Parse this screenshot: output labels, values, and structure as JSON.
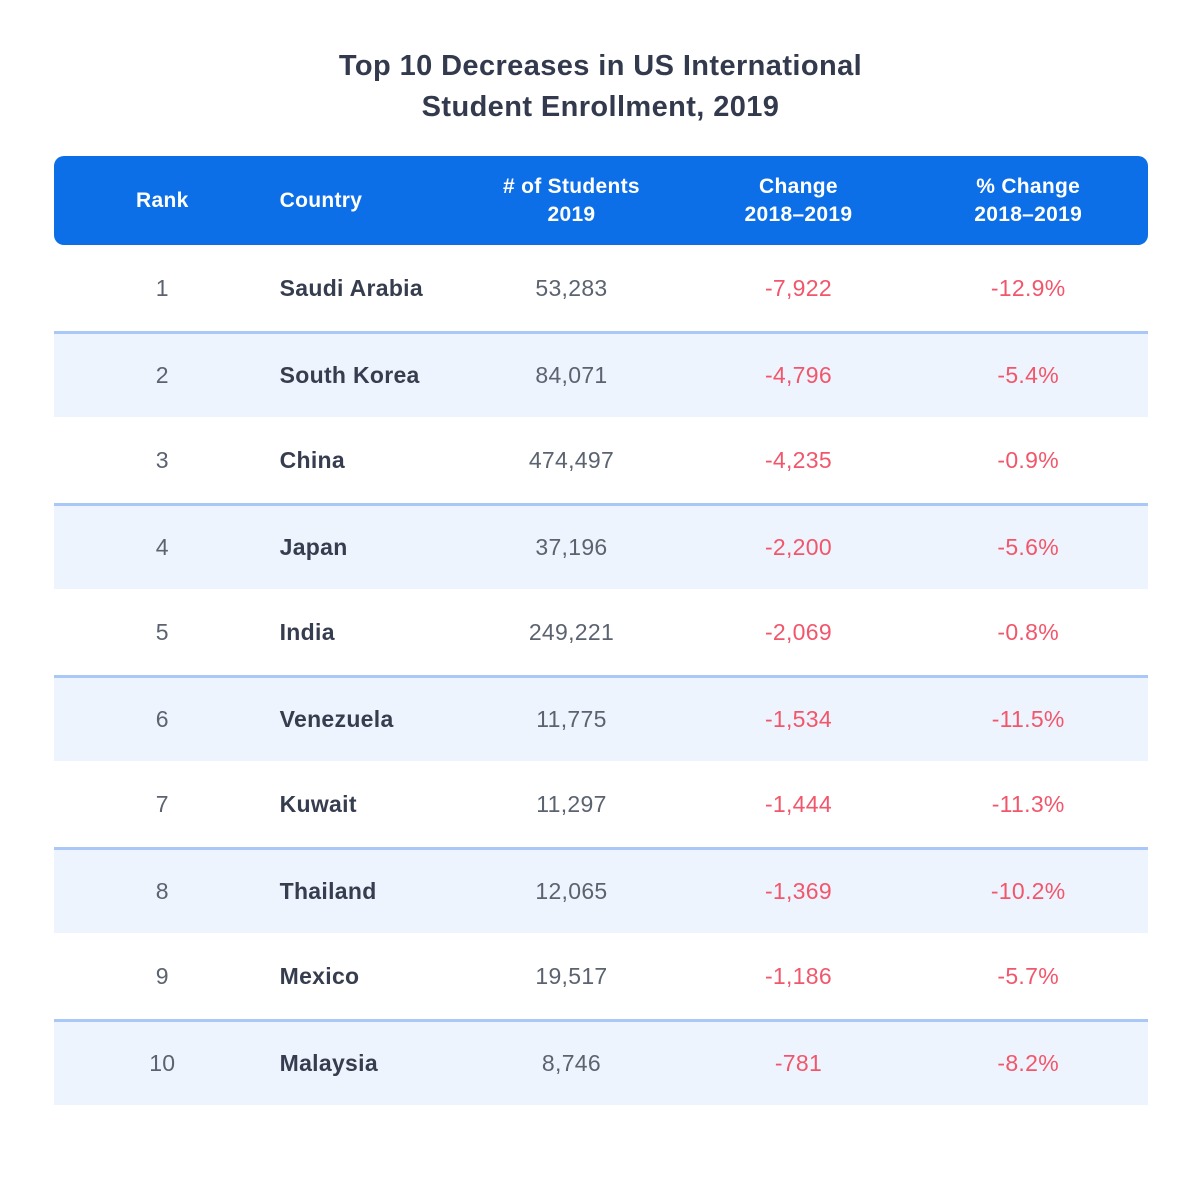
{
  "title": "Top 10 Decreases in US International\nStudent Enrollment, 2019",
  "colors": {
    "header_bg": "#0d6fe8",
    "header_text": "#ffffff",
    "title_text": "#333a4d",
    "country_text": "#363d4f",
    "number_text": "#5c6370",
    "negative_text": "#f2566b",
    "alt_row_bg": "#eef4fd",
    "alt_row_border": "#a9c8f7",
    "page_bg": "#ffffff"
  },
  "header": {
    "rank": "Rank",
    "country": "Country",
    "students": "# of Students\n2019",
    "change": "Change\n2018–2019",
    "pct_change": "% Change\n2018–2019"
  },
  "rows": [
    {
      "rank": "1",
      "country": "Saudi Arabia",
      "students": "53,283",
      "change": "-7,922",
      "pct": "-12.9%"
    },
    {
      "rank": "2",
      "country": "South Korea",
      "students": "84,071",
      "change": "-4,796",
      "pct": "-5.4%"
    },
    {
      "rank": "3",
      "country": "China",
      "students": "474,497",
      "change": "-4,235",
      "pct": "-0.9%"
    },
    {
      "rank": "4",
      "country": "Japan",
      "students": "37,196",
      "change": "-2,200",
      "pct": "-5.6%"
    },
    {
      "rank": "5",
      "country": "India",
      "students": "249,221",
      "change": "-2,069",
      "pct": "-0.8%"
    },
    {
      "rank": "6",
      "country": "Venezuela",
      "students": "11,775",
      "change": "-1,534",
      "pct": "-11.5%"
    },
    {
      "rank": "7",
      "country": "Kuwait",
      "students": "11,297",
      "change": "-1,444",
      "pct": "-11.3%"
    },
    {
      "rank": "8",
      "country": "Thailand",
      "students": "12,065",
      "change": "-1,369",
      "pct": "-10.2%"
    },
    {
      "rank": "9",
      "country": "Mexico",
      "students": "19,517",
      "change": "-1,186",
      "pct": "-5.7%"
    },
    {
      "rank": "10",
      "country": "Malaysia",
      "students": "8,746",
      "change": "-781",
      "pct": "-8.2%"
    }
  ],
  "chart_data": {
    "type": "table",
    "title": "Top 10 Decreases in US International Student Enrollment, 2019",
    "columns": [
      "Rank",
      "Country",
      "# of Students 2019",
      "Change 2018–2019",
      "% Change 2018–2019"
    ],
    "rows": [
      [
        1,
        "Saudi Arabia",
        53283,
        -7922,
        -12.9
      ],
      [
        2,
        "South Korea",
        84071,
        -4796,
        -5.4
      ],
      [
        3,
        "China",
        474497,
        -4235,
        -0.9
      ],
      [
        4,
        "Japan",
        37196,
        -2200,
        -5.6
      ],
      [
        5,
        "India",
        249221,
        -2069,
        -0.8
      ],
      [
        6,
        "Venezuela",
        11775,
        -1534,
        -11.5
      ],
      [
        7,
        "Kuwait",
        11297,
        -1444,
        -11.3
      ],
      [
        8,
        "Thailand",
        12065,
        -1369,
        -10.2
      ],
      [
        9,
        "Mexico",
        19517,
        -1186,
        -5.7
      ],
      [
        10,
        "Malaysia",
        8746,
        -781,
        -8.2
      ]
    ],
    "notes": "Negative change values rendered in red (#f2566b); alternating rows shaded light blue"
  }
}
